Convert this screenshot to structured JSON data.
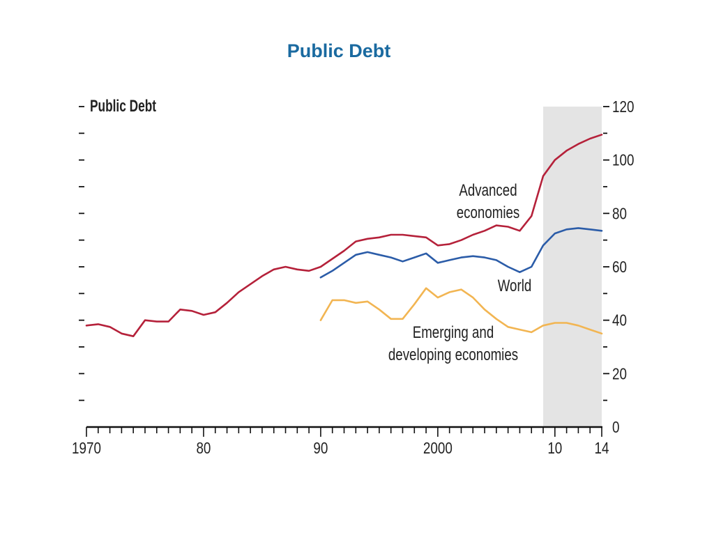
{
  "page": {
    "title": "Public Debt"
  },
  "chart_data": {
    "type": "line",
    "title": "Public Debt",
    "xlabel": "",
    "ylabel": "",
    "xlim": [
      1970,
      2014
    ],
    "ylim": [
      0,
      120
    ],
    "x_ticks": [
      1970,
      1980,
      1990,
      2000,
      2010,
      2014
    ],
    "x_tick_labels": [
      "1970",
      "80",
      "90",
      "2000",
      "10",
      "14"
    ],
    "y_ticks": [
      0,
      20,
      40,
      60,
      80,
      100,
      120
    ],
    "y_tick_labels": [
      "0",
      "20",
      "40",
      "60",
      "80",
      "100",
      "120"
    ],
    "shaded_region": {
      "from": 2009,
      "to": 2014,
      "color": "#e4e4e4"
    },
    "grid": false,
    "series": [
      {
        "name": "Advanced economies",
        "label_lines": [
          "Advanced",
          "economies"
        ],
        "color": "#b5213a",
        "x": [
          1970,
          1971,
          1972,
          1973,
          1974,
          1975,
          1976,
          1977,
          1978,
          1979,
          1980,
          1981,
          1982,
          1983,
          1984,
          1985,
          1986,
          1987,
          1988,
          1989,
          1990,
          1991,
          1992,
          1993,
          1994,
          1995,
          1996,
          1997,
          1998,
          1999,
          2000,
          2001,
          2002,
          2003,
          2004,
          2005,
          2006,
          2007,
          2008,
          2009,
          2010,
          2011,
          2012,
          2013,
          2014
        ],
        "y": [
          38,
          38.5,
          37.5,
          35,
          34,
          40,
          39.5,
          39.5,
          44,
          43.5,
          42,
          43,
          46.5,
          50.5,
          53.5,
          56.5,
          59,
          60,
          59,
          58.5,
          60,
          63,
          66,
          69.5,
          70.5,
          71,
          72,
          72,
          71.5,
          71,
          68,
          68.5,
          70,
          72,
          73.5,
          75.5,
          75,
          73.5,
          79,
          94,
          100,
          103.5,
          106,
          108,
          109.5
        ]
      },
      {
        "name": "World",
        "label_lines": [
          "World"
        ],
        "color": "#2b5ca8",
        "x": [
          1990,
          1991,
          1992,
          1993,
          1994,
          1995,
          1996,
          1997,
          1998,
          1999,
          2000,
          2001,
          2002,
          2003,
          2004,
          2005,
          2006,
          2007,
          2008,
          2009,
          2010,
          2011,
          2012,
          2013,
          2014
        ],
        "y": [
          56,
          58.5,
          61.5,
          64.5,
          65.5,
          64.5,
          63.5,
          62,
          63.5,
          65,
          61.5,
          62.5,
          63.5,
          64,
          63.5,
          62.5,
          60,
          58,
          60,
          68,
          72.5,
          74,
          74.5,
          74,
          73.5
        ]
      },
      {
        "name": "Emerging and developing economies",
        "label_lines": [
          "Emerging and",
          "developing economies"
        ],
        "color": "#f2b552",
        "x": [
          1990,
          1991,
          1992,
          1993,
          1994,
          1995,
          1996,
          1997,
          1998,
          1999,
          2000,
          2001,
          2002,
          2003,
          2004,
          2005,
          2006,
          2007,
          2008,
          2009,
          2010,
          2011,
          2012,
          2013,
          2014
        ],
        "y": [
          40,
          47.5,
          47.5,
          46.5,
          47,
          44,
          40.5,
          40.5,
          46,
          52,
          48.5,
          50.5,
          51.5,
          48.5,
          44,
          40.5,
          37.5,
          36.5,
          35.5,
          38,
          39,
          39,
          38,
          36.5,
          35
        ]
      }
    ],
    "inner_label": "Public Debt"
  }
}
